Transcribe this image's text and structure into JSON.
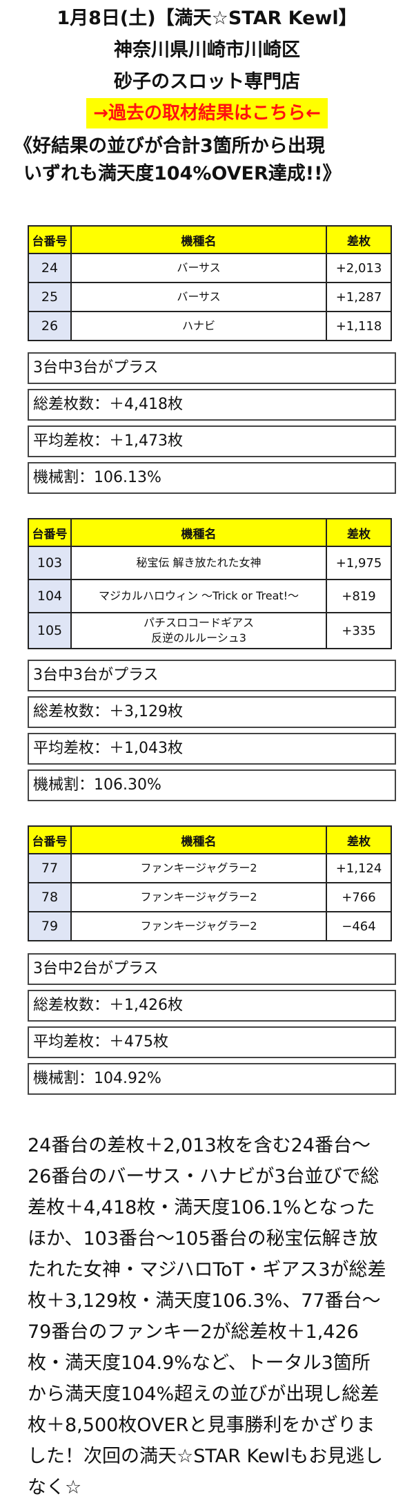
{
  "header": {
    "line1": "1月8日(土)【満天☆STAR Kewl】",
    "line2": "神奈川県川崎市川崎区",
    "line3": "砂子のスロット専門店",
    "banner": "→過去の取材結果はこちら←",
    "headline1": "《好結果の並びが合計3箇所から出現",
    "headline2": "いずれも満天度104%OVER達成!!》"
  },
  "table_headers": {
    "no": "台番号",
    "model": "機種名",
    "diff": "差枚"
  },
  "groups": [
    {
      "rows": [
        {
          "no": "24",
          "model": "バーサス",
          "model2": "",
          "diff": "+2,013"
        },
        {
          "no": "25",
          "model": "バーサス",
          "model2": "",
          "diff": "+1,287"
        },
        {
          "no": "26",
          "model": "ハナビ",
          "model2": "",
          "diff": "+1,118"
        }
      ],
      "summary": [
        "3台中3台がプラス",
        "総差枚数：＋4,418枚",
        "平均差枚：＋1,473枚",
        "機械割：106.13%"
      ]
    },
    {
      "rows": [
        {
          "no": "103",
          "model": "秘宝伝 解き放たれた女神",
          "model2": "",
          "diff": "+1,975"
        },
        {
          "no": "104",
          "model": "マジカルハロウィン ～Trick or Treat!～",
          "model2": "",
          "diff": "+819"
        },
        {
          "no": "105",
          "model": "パチスロコードギアス",
          "model2": "反逆のルルーシュ3",
          "diff": "+335"
        }
      ],
      "summary": [
        "3台中3台がプラス",
        "総差枚数：＋3,129枚",
        "平均差枚：＋1,043枚",
        "機械割：106.30%"
      ]
    },
    {
      "rows": [
        {
          "no": "77",
          "model": "ファンキージャグラー2",
          "model2": "",
          "diff": "+1,124"
        },
        {
          "no": "78",
          "model": "ファンキージャグラー2",
          "model2": "",
          "diff": "+766"
        },
        {
          "no": "79",
          "model": "ファンキージャグラー2",
          "model2": "",
          "diff": "−464"
        }
      ],
      "summary": [
        "3台中2台がプラス",
        "総差枚数：＋1,426枚",
        "平均差枚：＋475枚",
        "機械割：104.92%"
      ]
    }
  ],
  "footer": "24番台の差枚＋2,013枚を含む24番台～26番台のバーサス・ハナビが3台並びで総差枚＋4,418枚・満天度106.1%となったほか、103番台～105番台の秘宝伝解き放たれた女神・マジハロToT・ギアス3が総差枚＋3,129枚・満天度106.3%、77番台～79番台のファンキー2が総差枚＋1,426枚・満天度104.9%など、トータル3箇所から満天度104%超えの並びが出現し総差枚＋8,500枚OVERと見事勝利をかざりました！次回の満天☆STAR Kewlもお見逃しなく☆",
  "colors": {
    "banner_bg": "#ffff00",
    "banner_text": "#ff1010",
    "header_bg": "#ffff00",
    "number_cell_bg": "#dfe5f5"
  }
}
